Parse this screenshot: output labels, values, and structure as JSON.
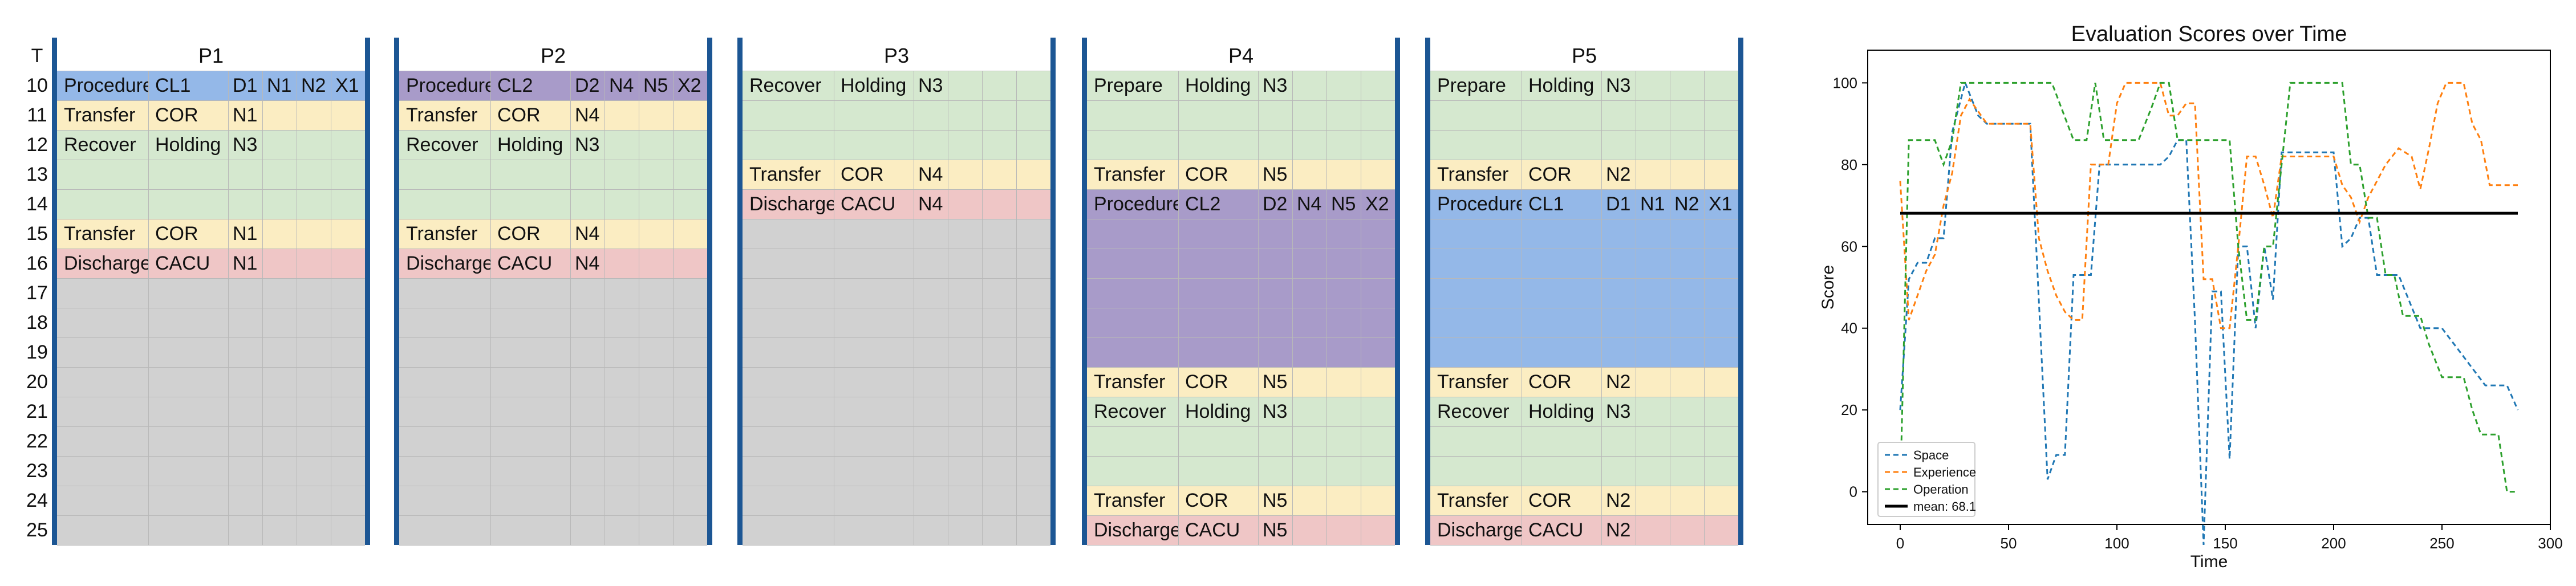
{
  "schedule": {
    "time_header": "T",
    "times": [
      "10",
      "11",
      "12",
      "13",
      "14",
      "15",
      "16",
      "17",
      "18",
      "19",
      "20",
      "21",
      "22",
      "23",
      "24",
      "25"
    ],
    "colors": {
      "procedure_blue": "#94b8e8",
      "procedure_purple": "#a89bc9",
      "transfer": "#fbedc2",
      "recover": "#d5e8cf",
      "prepare": "#d5e8cf",
      "discharge": "#efc6c6",
      "empty": "#d1d1d1",
      "separator": "#1c5694"
    },
    "panels": [
      {
        "name": "P1",
        "blocks": [
          {
            "start": 0,
            "span": 1,
            "color": "procedure_blue",
            "cells": [
              "Procedure",
              "CL1",
              "D1",
              "N1",
              "N2",
              "X1"
            ]
          },
          {
            "start": 1,
            "span": 1,
            "color": "transfer",
            "cells": [
              "Transfer",
              "COR",
              "N1"
            ]
          },
          {
            "start": 2,
            "span": 3,
            "color": "recover",
            "cells": [
              "Recover",
              "Holding",
              "N3"
            ]
          },
          {
            "start": 5,
            "span": 1,
            "color": "transfer",
            "cells": [
              "Transfer",
              "COR",
              "N1"
            ]
          },
          {
            "start": 6,
            "span": 1,
            "color": "discharge",
            "cells": [
              "Discharge",
              "CACU",
              "N1"
            ]
          },
          {
            "start": 7,
            "span": 9,
            "color": "empty",
            "cells": []
          }
        ]
      },
      {
        "name": "P2",
        "blocks": [
          {
            "start": 0,
            "span": 1,
            "color": "procedure_purple",
            "cells": [
              "Procedure",
              "CL2",
              "D2",
              "N4",
              "N5",
              "X2"
            ]
          },
          {
            "start": 1,
            "span": 1,
            "color": "transfer",
            "cells": [
              "Transfer",
              "COR",
              "N4"
            ]
          },
          {
            "start": 2,
            "span": 3,
            "color": "recover",
            "cells": [
              "Recover",
              "Holding",
              "N3"
            ]
          },
          {
            "start": 5,
            "span": 1,
            "color": "transfer",
            "cells": [
              "Transfer",
              "COR",
              "N4"
            ]
          },
          {
            "start": 6,
            "span": 1,
            "color": "discharge",
            "cells": [
              "Discharge",
              "CACU",
              "N4"
            ]
          },
          {
            "start": 7,
            "span": 9,
            "color": "empty",
            "cells": []
          }
        ]
      },
      {
        "name": "P3",
        "blocks": [
          {
            "start": 0,
            "span": 3,
            "color": "recover",
            "cells": [
              "Recover",
              "Holding",
              "N3"
            ]
          },
          {
            "start": 3,
            "span": 1,
            "color": "transfer",
            "cells": [
              "Transfer",
              "COR",
              "N4"
            ]
          },
          {
            "start": 4,
            "span": 1,
            "color": "discharge",
            "cells": [
              "Discharge",
              "CACU",
              "N4"
            ]
          },
          {
            "start": 5,
            "span": 11,
            "color": "empty",
            "cells": []
          }
        ]
      },
      {
        "name": "P4",
        "blocks": [
          {
            "start": 0,
            "span": 3,
            "color": "prepare",
            "cells": [
              "Prepare",
              "Holding",
              "N3"
            ]
          },
          {
            "start": 3,
            "span": 1,
            "color": "transfer",
            "cells": [
              "Transfer",
              "COR",
              "N5"
            ]
          },
          {
            "start": 4,
            "span": 6,
            "color": "procedure_purple",
            "cells": [
              "Procedure",
              "CL2",
              "D2",
              "N4",
              "N5",
              "X2"
            ]
          },
          {
            "start": 10,
            "span": 1,
            "color": "transfer",
            "cells": [
              "Transfer",
              "COR",
              "N5"
            ]
          },
          {
            "start": 11,
            "span": 3,
            "color": "recover",
            "cells": [
              "Recover",
              "Holding",
              "N3"
            ]
          },
          {
            "start": 14,
            "span": 1,
            "color": "transfer",
            "cells": [
              "Transfer",
              "COR",
              "N5"
            ]
          },
          {
            "start": 15,
            "span": 1,
            "color": "discharge",
            "cells": [
              "Discharge",
              "CACU",
              "N5"
            ]
          }
        ]
      },
      {
        "name": "P5",
        "blocks": [
          {
            "start": 0,
            "span": 3,
            "color": "prepare",
            "cells": [
              "Prepare",
              "Holding",
              "N3"
            ]
          },
          {
            "start": 3,
            "span": 1,
            "color": "transfer",
            "cells": [
              "Transfer",
              "COR",
              "N2"
            ]
          },
          {
            "start": 4,
            "span": 6,
            "color": "procedure_blue",
            "cells": [
              "Procedure",
              "CL1",
              "D1",
              "N1",
              "N2",
              "X1"
            ]
          },
          {
            "start": 10,
            "span": 1,
            "color": "transfer",
            "cells": [
              "Transfer",
              "COR",
              "N2"
            ]
          },
          {
            "start": 11,
            "span": 3,
            "color": "recover",
            "cells": [
              "Recover",
              "Holding",
              "N3"
            ]
          },
          {
            "start": 14,
            "span": 1,
            "color": "transfer",
            "cells": [
              "Transfer",
              "COR",
              "N2"
            ]
          },
          {
            "start": 15,
            "span": 1,
            "color": "discharge",
            "cells": [
              "Discharge",
              "CACU",
              "N2"
            ]
          }
        ]
      }
    ]
  },
  "chart_data": {
    "type": "line",
    "title": "Evaluation Scores over Time",
    "xlabel": "Time",
    "ylabel": "Score",
    "xlim": [
      -15,
      300
    ],
    "ylim": [
      -8,
      108
    ],
    "xticks": [
      0,
      50,
      100,
      150,
      200,
      250,
      300
    ],
    "yticks": [
      0,
      20,
      40,
      60,
      80,
      100
    ],
    "grid": false,
    "legend_position": "lower-left",
    "mean": {
      "label": "mean: 68.1",
      "value": 68.1,
      "color": "#000000"
    },
    "series": [
      {
        "name": "Space",
        "color": "#1f77b4",
        "x": [
          0,
          4,
          8,
          12,
          16,
          20,
          24,
          30,
          36,
          40,
          50,
          60,
          68,
          72,
          76,
          80,
          84,
          88,
          92,
          96,
          100,
          110,
          120,
          124,
          128,
          132,
          136,
          140,
          144,
          148,
          152,
          156,
          160,
          164,
          168,
          172,
          176,
          180,
          190,
          200,
          204,
          208,
          212,
          216,
          220,
          230,
          240,
          250,
          260,
          270,
          280,
          285
        ],
        "y": [
          20,
          52,
          56,
          56,
          62,
          62,
          88,
          100,
          92,
          90,
          90,
          90,
          3,
          9,
          9,
          53,
          53,
          53,
          80,
          80,
          80,
          80,
          80,
          82,
          86,
          86,
          42,
          -13,
          49,
          49,
          8,
          60,
          60,
          40,
          60,
          47,
          83,
          83,
          83,
          83,
          60,
          62,
          67,
          67,
          53,
          53,
          40,
          40,
          33,
          26,
          26,
          20
        ]
      },
      {
        "name": "Experience",
        "color": "#ff7f0e",
        "x": [
          0,
          4,
          8,
          12,
          16,
          20,
          24,
          28,
          32,
          40,
          50,
          60,
          64,
          68,
          72,
          76,
          80,
          84,
          88,
          92,
          96,
          100,
          104,
          108,
          112,
          116,
          120,
          124,
          128,
          132,
          136,
          140,
          144,
          148,
          152,
          156,
          160,
          164,
          168,
          172,
          176,
          180,
          190,
          200,
          204,
          208,
          212,
          216,
          220,
          224,
          230,
          236,
          240,
          244,
          248,
          252,
          256,
          260,
          264,
          268,
          272,
          276,
          280,
          285
        ],
        "y": [
          76,
          42,
          48,
          54,
          58,
          70,
          78,
          92,
          96,
          90,
          90,
          90,
          62,
          54,
          48,
          44,
          42,
          42,
          80,
          80,
          80,
          95,
          100,
          100,
          100,
          100,
          100,
          92,
          92,
          95,
          95,
          52,
          52,
          40,
          40,
          60,
          82,
          82,
          75,
          67,
          82,
          82,
          82,
          82,
          75,
          72,
          66,
          72,
          76,
          80,
          84,
          82,
          74,
          84,
          95,
          100,
          100,
          100,
          90,
          86,
          75,
          75,
          75,
          75
        ]
      },
      {
        "name": "Operation",
        "color": "#2ca02c",
        "x": [
          0,
          4,
          8,
          12,
          16,
          20,
          24,
          28,
          32,
          40,
          50,
          60,
          70,
          80,
          86,
          90,
          94,
          100,
          110,
          116,
          120,
          124,
          128,
          132,
          136,
          140,
          144,
          148,
          152,
          156,
          160,
          164,
          168,
          172,
          176,
          180,
          190,
          200,
          204,
          208,
          212,
          216,
          220,
          224,
          228,
          232,
          236,
          240,
          244,
          250,
          256,
          260,
          264,
          268,
          272,
          276,
          280,
          284
        ],
        "y": [
          0,
          86,
          86,
          86,
          86,
          80,
          86,
          100,
          100,
          100,
          100,
          100,
          100,
          86,
          86,
          100,
          86,
          86,
          86,
          94,
          100,
          100,
          86,
          86,
          86,
          86,
          86,
          86,
          86,
          60,
          42,
          42,
          60,
          60,
          80,
          100,
          100,
          100,
          100,
          80,
          80,
          67,
          67,
          53,
          53,
          43,
          43,
          43,
          36,
          28,
          28,
          28,
          20,
          14,
          14,
          14,
          0,
          0
        ]
      }
    ]
  }
}
